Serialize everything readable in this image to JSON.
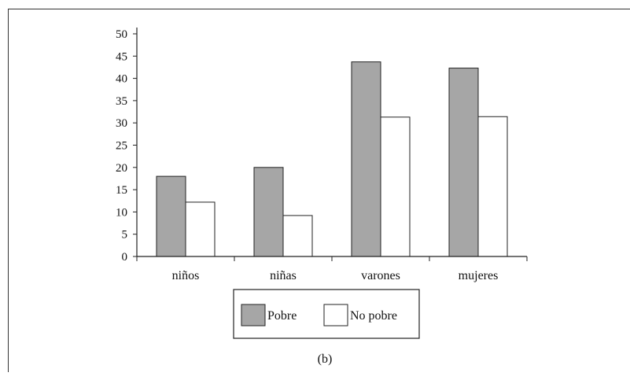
{
  "chart_data": {
    "type": "bar",
    "categories": [
      "niños",
      "niñas",
      "varones",
      "mujeres"
    ],
    "series": [
      {
        "name": "Pobre",
        "values": [
          18,
          20,
          43.7,
          42.3
        ],
        "color": "#a6a6a6"
      },
      {
        "name": "No pobre",
        "values": [
          12.2,
          9.2,
          31.3,
          31.4
        ],
        "color": "#ffffff"
      }
    ],
    "ylim": [
      0,
      50
    ],
    "yticks": [
      0,
      5,
      10,
      15,
      20,
      25,
      30,
      35,
      40,
      45,
      50
    ],
    "title": "",
    "xlabel": "",
    "ylabel": "",
    "grid": false,
    "legend_position": "bottom",
    "caption": "(b)"
  }
}
